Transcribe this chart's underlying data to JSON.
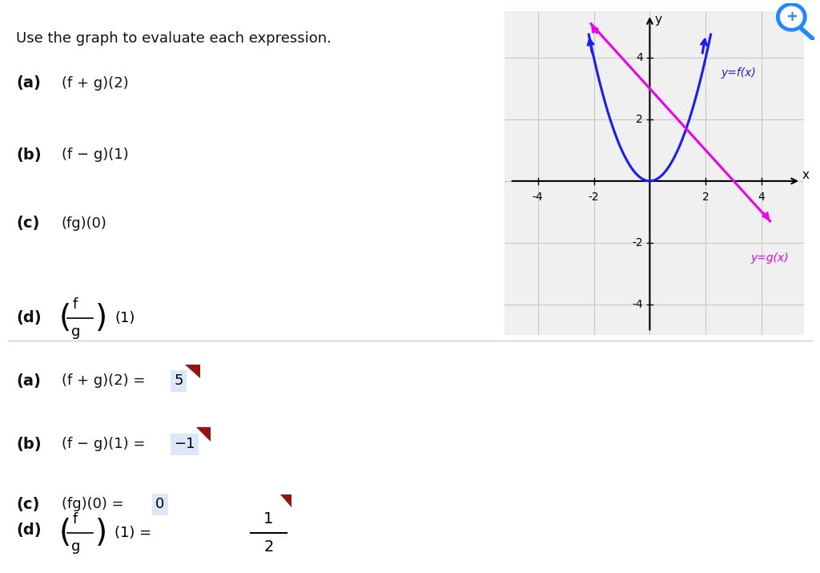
{
  "title_text": "Use the graph to evaluate each expression.",
  "graph": {
    "xlim": [
      -5.2,
      5.5
    ],
    "ylim": [
      -5.0,
      5.5
    ],
    "xticks": [
      -4,
      -2,
      2,
      4
    ],
    "yticks": [
      -4,
      -2,
      2,
      4
    ],
    "grid_color": "#c8c8c8",
    "bg_color": "#f0f0f0",
    "f_color": "#1a1aff",
    "g_color": "#ee00ee",
    "label_f": "y=f(x)",
    "label_g": "y=g(x)"
  },
  "answer_box_color": "#dce8f8",
  "corner_color": "#991111",
  "divider_color": "#cccccc",
  "background": "#ffffff",
  "text_color": "#111111"
}
